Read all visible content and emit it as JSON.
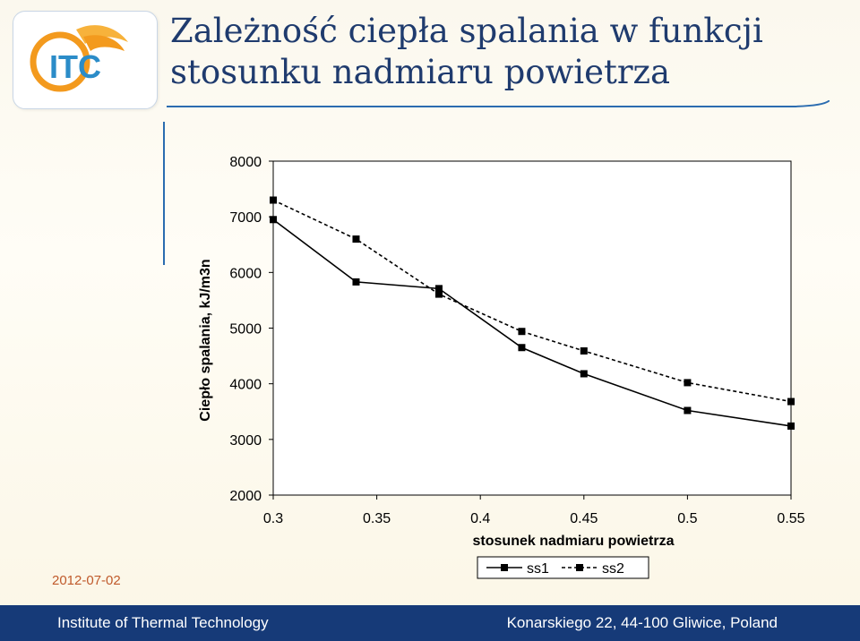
{
  "slide": {
    "title_line1": "Zależność ciepła spalania w funkcji",
    "title_line2": "stosunku nadmiaru powietrza",
    "logo_text": "ITC",
    "date": "2012-07-02",
    "footer_left": "Institute of Thermal Technology",
    "footer_right": "Konarskiego 22, 44-100 Gliwice, Poland"
  },
  "colors": {
    "title": "#1f3b6e",
    "footer_bg": "#163a78",
    "accent_orange": "#f39a1e",
    "logo_blue": "#2b8cc8"
  },
  "chart_data": {
    "type": "line",
    "xlabel": "stosunek nadmiaru powietrza",
    "ylabel": "Ciepło spalania, kJ/m3n",
    "xlim": [
      0.3,
      0.55
    ],
    "ylim": [
      2000,
      8000
    ],
    "xticks": [
      "0.3",
      "0.35",
      "0.4",
      "0.45",
      "0.5",
      "0.55"
    ],
    "yticks": [
      "2000",
      "3000",
      "4000",
      "5000",
      "6000",
      "7000",
      "8000"
    ],
    "grid": false,
    "legend": "bottom",
    "series": [
      {
        "name": "ss1",
        "style": "solid",
        "x": [
          0.3,
          0.34,
          0.38,
          0.42,
          0.45,
          0.5,
          0.55
        ],
        "y": [
          6950,
          5830,
          5710,
          4650,
          4180,
          3520,
          3240
        ]
      },
      {
        "name": "ss2",
        "style": "dashed",
        "x": [
          0.3,
          0.34,
          0.38,
          0.42,
          0.45,
          0.5,
          0.55
        ],
        "y": [
          7300,
          6600,
          5610,
          4940,
          4590,
          4020,
          3680
        ]
      }
    ]
  }
}
